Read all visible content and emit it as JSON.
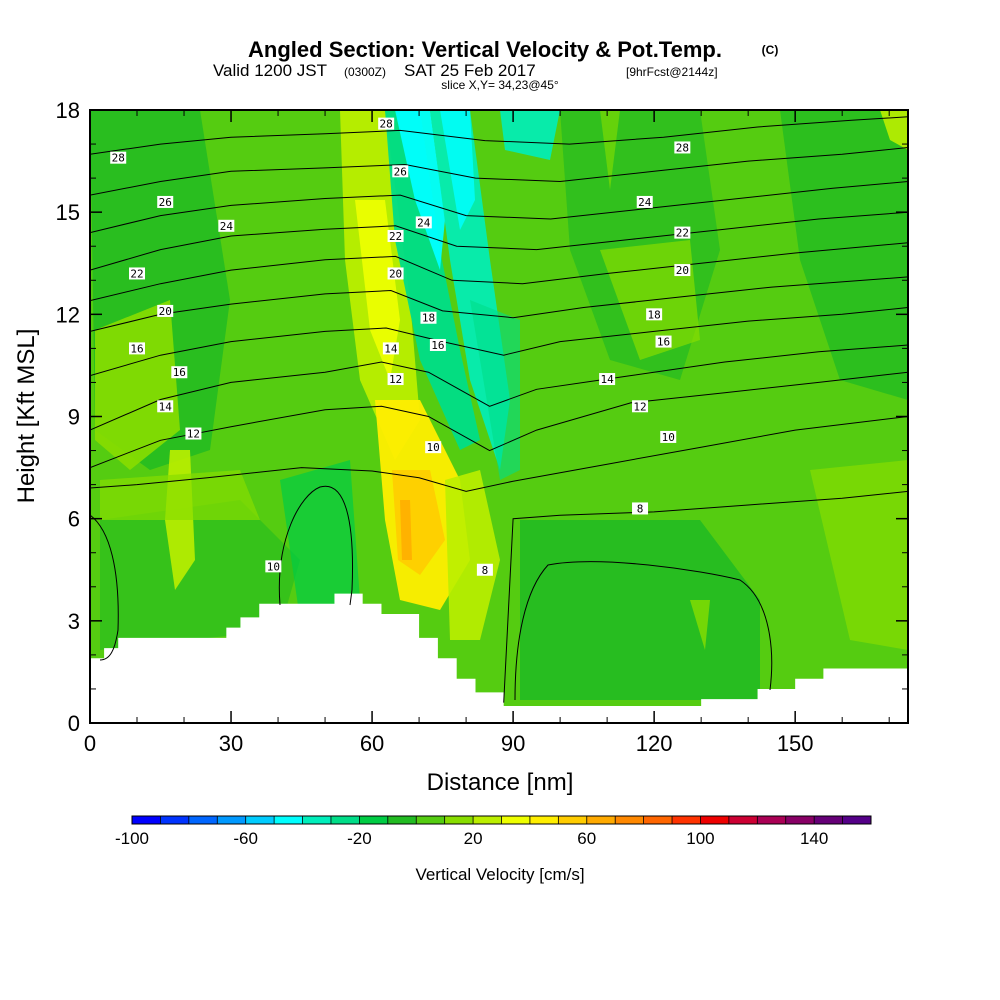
{
  "header": {
    "title_main": "Angled Section: Vertical Velocity & Pot.Temp.",
    "title_mark": "(C)",
    "valid_prefix": "Valid 1200 JST",
    "valid_zulu": "(0300Z)",
    "valid_date": "SAT 25 Feb 2017",
    "valid_fcst": "[9hrFcst@2144z]",
    "slice": "slice X,Y= 34,23@45°"
  },
  "chart_data": {
    "type": "heatmap",
    "xlabel": "Distance [nm]",
    "ylabel": "Height [Kft MSL]",
    "xlim": [
      0,
      174
    ],
    "ylim": [
      0,
      18
    ],
    "x_ticks": [
      "0",
      "30",
      "60",
      "90",
      "120",
      "150"
    ],
    "y_ticks": [
      "0",
      "3",
      "6",
      "9",
      "12",
      "15",
      "18"
    ],
    "field": "Vertical Velocity [cm/s]",
    "terrain_profile": [
      {
        "x": 0,
        "y": 1.9
      },
      {
        "x": 3,
        "y": 2.2
      },
      {
        "x": 6,
        "y": 2.5
      },
      {
        "x": 29,
        "y": 2.8
      },
      {
        "x": 32,
        "y": 3.1
      },
      {
        "x": 36,
        "y": 3.5
      },
      {
        "x": 52,
        "y": 3.8
      },
      {
        "x": 58,
        "y": 3.5
      },
      {
        "x": 62,
        "y": 3.2
      },
      {
        "x": 70,
        "y": 2.5
      },
      {
        "x": 74,
        "y": 1.9
      },
      {
        "x": 78,
        "y": 1.3
      },
      {
        "x": 82,
        "y": 0.9
      },
      {
        "x": 88,
        "y": 0.5
      },
      {
        "x": 130,
        "y": 0.7
      },
      {
        "x": 142,
        "y": 1.0
      },
      {
        "x": 150,
        "y": 1.3
      },
      {
        "x": 156,
        "y": 1.6
      },
      {
        "x": 174,
        "y": 1.6
      }
    ],
    "isentropes": [
      {
        "theta": 8,
        "points": [
          [
            88,
            0.6
          ],
          [
            90,
            6.0
          ],
          [
            100,
            6.1
          ],
          [
            120,
            6.2
          ],
          [
            140,
            6.4
          ],
          [
            160,
            6.6
          ],
          [
            174,
            6.8
          ]
        ]
      },
      {
        "theta": 10,
        "points": [
          [
            0,
            6.9
          ],
          [
            10,
            7.0
          ],
          [
            25,
            7.2
          ],
          [
            45,
            7.5
          ],
          [
            60,
            7.4
          ],
          [
            70,
            7.2
          ],
          [
            80,
            6.8
          ],
          [
            90,
            7.1
          ],
          [
            110,
            7.6
          ],
          [
            130,
            8.1
          ],
          [
            150,
            8.6
          ],
          [
            174,
            9.0
          ]
        ]
      },
      {
        "theta": 12,
        "points": [
          [
            0,
            7.5
          ],
          [
            15,
            8.3
          ],
          [
            30,
            8.7
          ],
          [
            50,
            9.2
          ],
          [
            62,
            9.3
          ],
          [
            72,
            9.0
          ],
          [
            85,
            8.0
          ],
          [
            95,
            8.6
          ],
          [
            115,
            9.4
          ],
          [
            135,
            9.7
          ],
          [
            155,
            10.0
          ],
          [
            174,
            10.3
          ]
        ]
      },
      {
        "theta": 14,
        "points": [
          [
            0,
            8.6
          ],
          [
            15,
            9.5
          ],
          [
            30,
            10.0
          ],
          [
            50,
            10.3
          ],
          [
            62,
            10.6
          ],
          [
            72,
            10.3
          ],
          [
            85,
            9.3
          ],
          [
            95,
            9.8
          ],
          [
            115,
            10.2
          ],
          [
            135,
            10.6
          ],
          [
            155,
            10.9
          ],
          [
            174,
            11.1
          ]
        ]
      },
      {
        "theta": 16,
        "points": [
          [
            0,
            10.2
          ],
          [
            15,
            10.8
          ],
          [
            30,
            11.2
          ],
          [
            50,
            11.5
          ],
          [
            63,
            11.6
          ],
          [
            75,
            11.2
          ],
          [
            88,
            10.8
          ],
          [
            100,
            11.2
          ],
          [
            120,
            11.5
          ],
          [
            140,
            11.8
          ],
          [
            160,
            12.0
          ],
          [
            174,
            12.2
          ]
        ]
      },
      {
        "theta": 18,
        "points": [
          [
            0,
            11.5
          ],
          [
            15,
            12.0
          ],
          [
            30,
            12.3
          ],
          [
            50,
            12.6
          ],
          [
            64,
            12.7
          ],
          [
            75,
            12.1
          ],
          [
            90,
            11.9
          ],
          [
            105,
            12.2
          ],
          [
            125,
            12.5
          ],
          [
            145,
            12.8
          ],
          [
            174,
            13.1
          ]
        ]
      },
      {
        "theta": 20,
        "points": [
          [
            0,
            12.4
          ],
          [
            15,
            12.9
          ],
          [
            30,
            13.3
          ],
          [
            50,
            13.6
          ],
          [
            65,
            13.7
          ],
          [
            77,
            13.0
          ],
          [
            92,
            12.9
          ],
          [
            110,
            13.2
          ],
          [
            130,
            13.5
          ],
          [
            150,
            13.8
          ],
          [
            174,
            14.1
          ]
        ]
      },
      {
        "theta": 22,
        "points": [
          [
            0,
            13.3
          ],
          [
            15,
            13.9
          ],
          [
            30,
            14.3
          ],
          [
            50,
            14.5
          ],
          [
            65,
            14.6
          ],
          [
            78,
            14.0
          ],
          [
            95,
            13.9
          ],
          [
            115,
            14.2
          ],
          [
            135,
            14.5
          ],
          [
            155,
            14.8
          ],
          [
            174,
            15.0
          ]
        ]
      },
      {
        "theta": 24,
        "points": [
          [
            0,
            14.4
          ],
          [
            15,
            14.9
          ],
          [
            30,
            15.2
          ],
          [
            50,
            15.4
          ],
          [
            66,
            15.5
          ],
          [
            80,
            14.9
          ],
          [
            98,
            14.8
          ],
          [
            118,
            15.1
          ],
          [
            138,
            15.4
          ],
          [
            158,
            15.7
          ],
          [
            174,
            15.9
          ]
        ]
      },
      {
        "theta": 26,
        "points": [
          [
            0,
            15.5
          ],
          [
            15,
            15.9
          ],
          [
            30,
            16.2
          ],
          [
            50,
            16.3
          ],
          [
            67,
            16.4
          ],
          [
            82,
            16.0
          ],
          [
            100,
            15.9
          ],
          [
            120,
            16.2
          ],
          [
            140,
            16.5
          ],
          [
            160,
            16.7
          ],
          [
            174,
            16.9
          ]
        ]
      },
      {
        "theta": 28,
        "points": [
          [
            0,
            16.7
          ],
          [
            15,
            17.0
          ],
          [
            30,
            17.2
          ],
          [
            50,
            17.3
          ],
          [
            66,
            17.4
          ],
          [
            84,
            17.1
          ],
          [
            102,
            17.0
          ],
          [
            122,
            17.2
          ],
          [
            142,
            17.5
          ],
          [
            162,
            17.7
          ],
          [
            174,
            17.8
          ]
        ]
      }
    ],
    "contour_labels": [
      {
        "text": "28",
        "x": 63,
        "y": 17.6
      },
      {
        "text": "28",
        "x": 6,
        "y": 16.6
      },
      {
        "text": "28",
        "x": 126,
        "y": 16.9
      },
      {
        "text": "26",
        "x": 66,
        "y": 16.2
      },
      {
        "text": "26",
        "x": 16,
        "y": 15.3
      },
      {
        "text": "24",
        "x": 118,
        "y": 15.3
      },
      {
        "text": "24",
        "x": 29,
        "y": 14.6
      },
      {
        "text": "24",
        "x": 71,
        "y": 14.7
      },
      {
        "text": "22",
        "x": 65,
        "y": 14.3
      },
      {
        "text": "22",
        "x": 126,
        "y": 14.4
      },
      {
        "text": "22",
        "x": 10,
        "y": 13.2
      },
      {
        "text": "20",
        "x": 65,
        "y": 13.2
      },
      {
        "text": "20",
        "x": 126,
        "y": 13.3
      },
      {
        "text": "20",
        "x": 16,
        "y": 12.1
      },
      {
        "text": "18",
        "x": 72,
        "y": 11.9
      },
      {
        "text": "18",
        "x": 120,
        "y": 12.0
      },
      {
        "text": "16",
        "x": 74,
        "y": 11.1
      },
      {
        "text": "16",
        "x": 122,
        "y": 11.2
      },
      {
        "text": "16",
        "x": 10,
        "y": 11.0
      },
      {
        "text": "16",
        "x": 19,
        "y": 10.3
      },
      {
        "text": "14",
        "x": 64,
        "y": 11.0
      },
      {
        "text": "14",
        "x": 110,
        "y": 10.1
      },
      {
        "text": "14",
        "x": 16,
        "y": 9.3
      },
      {
        "text": "12",
        "x": 65,
        "y": 10.1
      },
      {
        "text": "12",
        "x": 117,
        "y": 9.3
      },
      {
        "text": "12",
        "x": 22,
        "y": 8.5
      },
      {
        "text": "10",
        "x": 73,
        "y": 8.1
      },
      {
        "text": "10",
        "x": 123,
        "y": 8.4
      },
      {
        "text": "10",
        "x": 39,
        "y": 4.6
      },
      {
        "text": "8",
        "x": 117,
        "y": 6.3
      },
      {
        "text": "8",
        "x": 84,
        "y": 4.5
      }
    ],
    "colorbar": {
      "label": "Vertical Velocity [cm/s]",
      "ticks": [
        "-100",
        "-60",
        "-20",
        "20",
        "60",
        "100",
        "140"
      ],
      "min": -100,
      "max": 160,
      "step": 10,
      "colors": [
        "#0000ff",
        "#0033ff",
        "#0066ff",
        "#0099ff",
        "#00ccff",
        "#00ffff",
        "#00eebb",
        "#00dd88",
        "#00cc44",
        "#22bb22",
        "#55cc11",
        "#88dd00",
        "#bbee00",
        "#eeff00",
        "#ffee00",
        "#ffcc00",
        "#ffaa00",
        "#ff8800",
        "#ff6600",
        "#ff3300",
        "#ee0000",
        "#cc0033",
        "#aa0055",
        "#880066",
        "#660077",
        "#550088"
      ]
    }
  }
}
